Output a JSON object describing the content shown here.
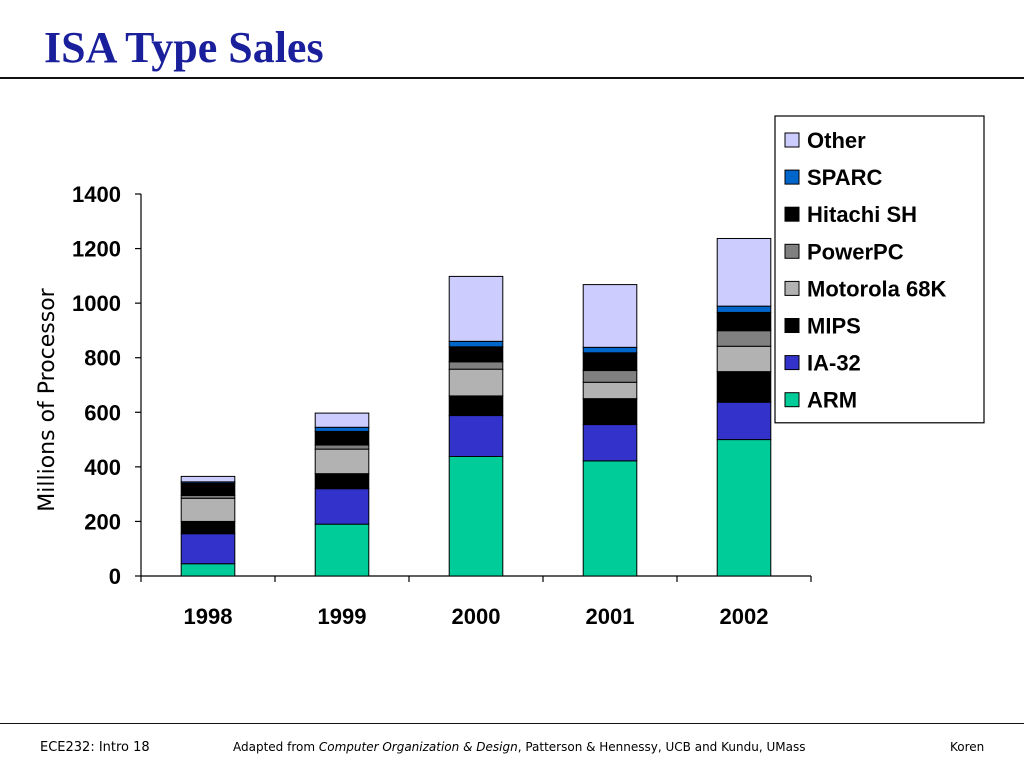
{
  "slide": {
    "title": "ISA Type Sales",
    "footer_left": "ECE232: Intro 18",
    "footer_center_prefix": "Adapted from ",
    "footer_center_book": "Computer Organization & Design",
    "footer_center_suffix": ", Patterson & Hennessy, UCB and Kundu, UMass",
    "footer_right": "Koren"
  },
  "chart_data": {
    "type": "bar",
    "stacked": true,
    "title": "",
    "xlabel": "",
    "ylabel": "Millions of Processor",
    "ylim": [
      0,
      1400
    ],
    "yticks": [
      0,
      200,
      400,
      600,
      800,
      1000,
      1200,
      1400
    ],
    "grid": false,
    "legend_position": "top-right",
    "categories": [
      "1998",
      "1999",
      "2000",
      "2001",
      "2002"
    ],
    "series": [
      {
        "name": "ARM",
        "color": "#00cc99",
        "values": [
          45,
          190,
          438,
          422,
          500
        ]
      },
      {
        "name": "IA-32",
        "color": "#3333cc",
        "values": [
          110,
          130,
          150,
          133,
          137
        ]
      },
      {
        "name": "MIPS",
        "color": "#000000",
        "values": [
          45,
          55,
          72,
          95,
          112
        ]
      },
      {
        "name": "Motorola 68K",
        "color": "#b2b2b2",
        "values": [
          85,
          90,
          98,
          60,
          93
        ]
      },
      {
        "name": "PowerPC",
        "color": "#808080",
        "values": [
          10,
          15,
          27,
          43,
          57
        ]
      },
      {
        "name": "Hitachi SH",
        "color": "#000000",
        "values": [
          45,
          50,
          55,
          65,
          67
        ]
      },
      {
        "name": "SPARC",
        "color": "#0066cc",
        "values": [
          5,
          15,
          20,
          20,
          23
        ]
      },
      {
        "name": "Other",
        "color": "#ccccff",
        "values": [
          20,
          52,
          238,
          230,
          248
        ]
      }
    ]
  }
}
